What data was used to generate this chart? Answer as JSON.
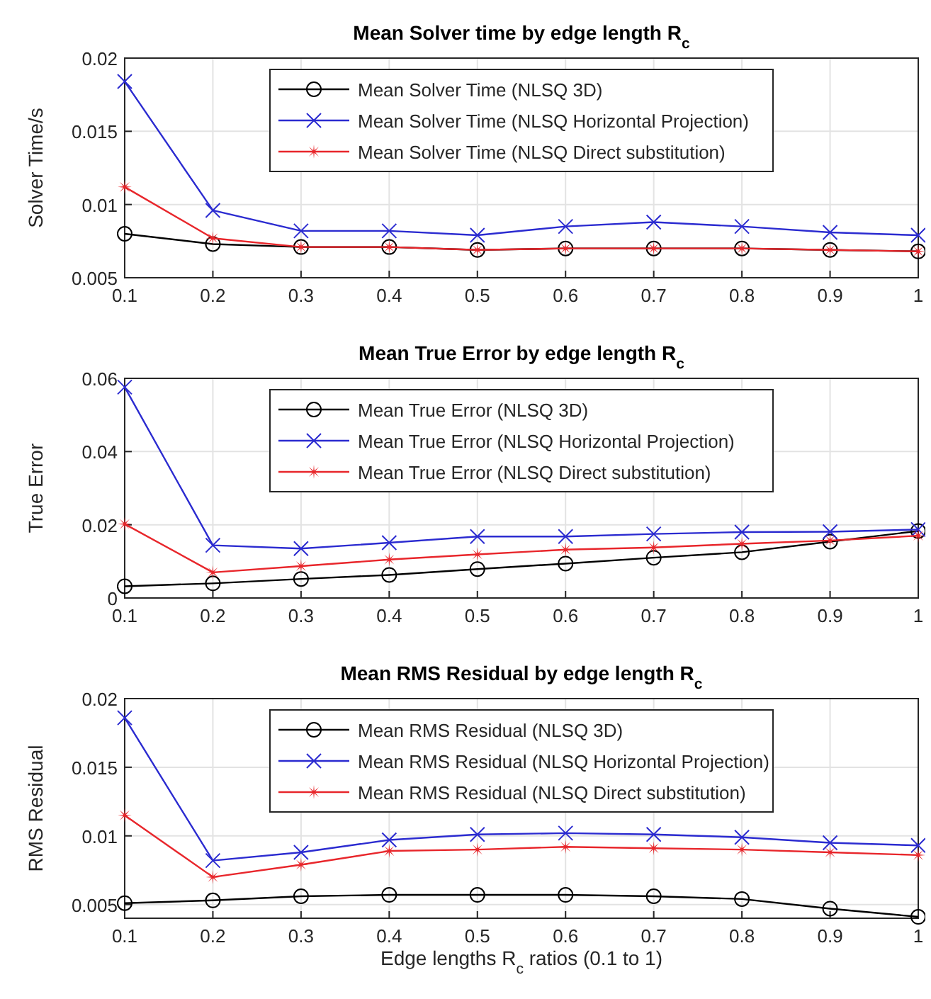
{
  "chart_data": [
    {
      "type": "line",
      "title": "Mean Solver time by edge length R$_{c}$",
      "ylabel": "Solver Time/s",
      "x": [
        0.1,
        0.2,
        0.3,
        0.4,
        0.5,
        0.6,
        0.7,
        0.8,
        0.9,
        1
      ],
      "xlim": [
        0.1,
        1
      ],
      "xticks": [
        0.1,
        0.2,
        0.3,
        0.4,
        0.5,
        0.6,
        0.7,
        0.8,
        0.9,
        1
      ],
      "ylim": [
        0.005,
        0.02
      ],
      "yticks": [
        0.005,
        0.01,
        0.015,
        0.02
      ],
      "grid": true,
      "legend": "top",
      "line_style": "solid",
      "series": [
        {
          "name": "Mean Solver Time (NLSQ 3D)",
          "color": "#000000",
          "marker": "circle",
          "values": [
            0.008,
            0.0073,
            0.0071,
            0.0071,
            0.0069,
            0.007,
            0.007,
            0.007,
            0.0069,
            0.0068
          ]
        },
        {
          "name": "Mean Solver Time (NLSQ Horizontal Projection)",
          "color": "#2b2bd0",
          "marker": "cross",
          "values": [
            0.0184,
            0.0096,
            0.0082,
            0.0082,
            0.0079,
            0.0085,
            0.0088,
            0.0085,
            0.0081,
            0.0079
          ]
        },
        {
          "name": "Mean Solver Time (NLSQ Direct substitution)",
          "color": "#e8262b",
          "marker": "star",
          "values": [
            0.0112,
            0.0077,
            0.0071,
            0.0071,
            0.0069,
            0.007,
            0.007,
            0.007,
            0.0069,
            0.0068
          ]
        }
      ]
    },
    {
      "type": "line",
      "title": "Mean True Error by edge length R$_{c}$",
      "ylabel": "True Error",
      "x": [
        0.1,
        0.2,
        0.3,
        0.4,
        0.5,
        0.6,
        0.7,
        0.8,
        0.9,
        1
      ],
      "xlim": [
        0.1,
        1
      ],
      "xticks": [
        0.1,
        0.2,
        0.3,
        0.4,
        0.5,
        0.6,
        0.7,
        0.8,
        0.9,
        1
      ],
      "ylim": [
        0,
        0.06
      ],
      "yticks": [
        0,
        0.02,
        0.04,
        0.06
      ],
      "grid": true,
      "legend": "top",
      "line_style": "solid",
      "series": [
        {
          "name": "Mean True Error (NLSQ 3D)",
          "color": "#000000",
          "marker": "circle",
          "values": [
            0.0032,
            0.004,
            0.0052,
            0.0063,
            0.0079,
            0.0094,
            0.011,
            0.0125,
            0.0154,
            0.0183
          ]
        },
        {
          "name": "Mean True Error (NLSQ Horizontal Projection)",
          "color": "#2b2bd0",
          "marker": "cross",
          "values": [
            0.0576,
            0.0144,
            0.0135,
            0.0151,
            0.0168,
            0.0168,
            0.0175,
            0.018,
            0.0181,
            0.0187
          ]
        },
        {
          "name": "Mean True Error (NLSQ Direct substitution)",
          "color": "#e8262b",
          "marker": "star",
          "values": [
            0.0202,
            0.007,
            0.0087,
            0.0105,
            0.0119,
            0.0132,
            0.0138,
            0.0148,
            0.0157,
            0.017
          ]
        }
      ]
    },
    {
      "type": "line",
      "title": "Mean RMS Residual by edge length R$_{c}$",
      "xlabel": "Edge lengths R$_{c}$ ratios (0.1 to 1)",
      "ylabel": "RMS Residual",
      "x": [
        0.1,
        0.2,
        0.3,
        0.4,
        0.5,
        0.6,
        0.7,
        0.8,
        0.9,
        1
      ],
      "xlim": [
        0.1,
        1
      ],
      "xticks": [
        0.1,
        0.2,
        0.3,
        0.4,
        0.5,
        0.6,
        0.7,
        0.8,
        0.9,
        1
      ],
      "ylim": [
        0.004,
        0.02
      ],
      "yticks": [
        0.005,
        0.01,
        0.015,
        0.02
      ],
      "grid": true,
      "legend": "top",
      "line_style": "solid",
      "series": [
        {
          "name": "Mean RMS Residual (NLSQ 3D)",
          "color": "#000000",
          "marker": "circle",
          "values": [
            0.0051,
            0.0053,
            0.0056,
            0.0057,
            0.0057,
            0.0057,
            0.0056,
            0.0054,
            0.0047,
            0.0041
          ]
        },
        {
          "name": "Mean RMS Residual (NLSQ Horizontal Projection)",
          "color": "#2b2bd0",
          "marker": "cross",
          "values": [
            0.0186,
            0.0082,
            0.0088,
            0.0097,
            0.0101,
            0.0102,
            0.0101,
            0.0099,
            0.0095,
            0.0093
          ]
        },
        {
          "name": "Mean RMS Residual (NLSQ Direct substitution)",
          "color": "#e8262b",
          "marker": "star",
          "values": [
            0.0115,
            0.007,
            0.0079,
            0.0089,
            0.009,
            0.0092,
            0.0091,
            0.009,
            0.0088,
            0.0086
          ]
        }
      ]
    }
  ]
}
